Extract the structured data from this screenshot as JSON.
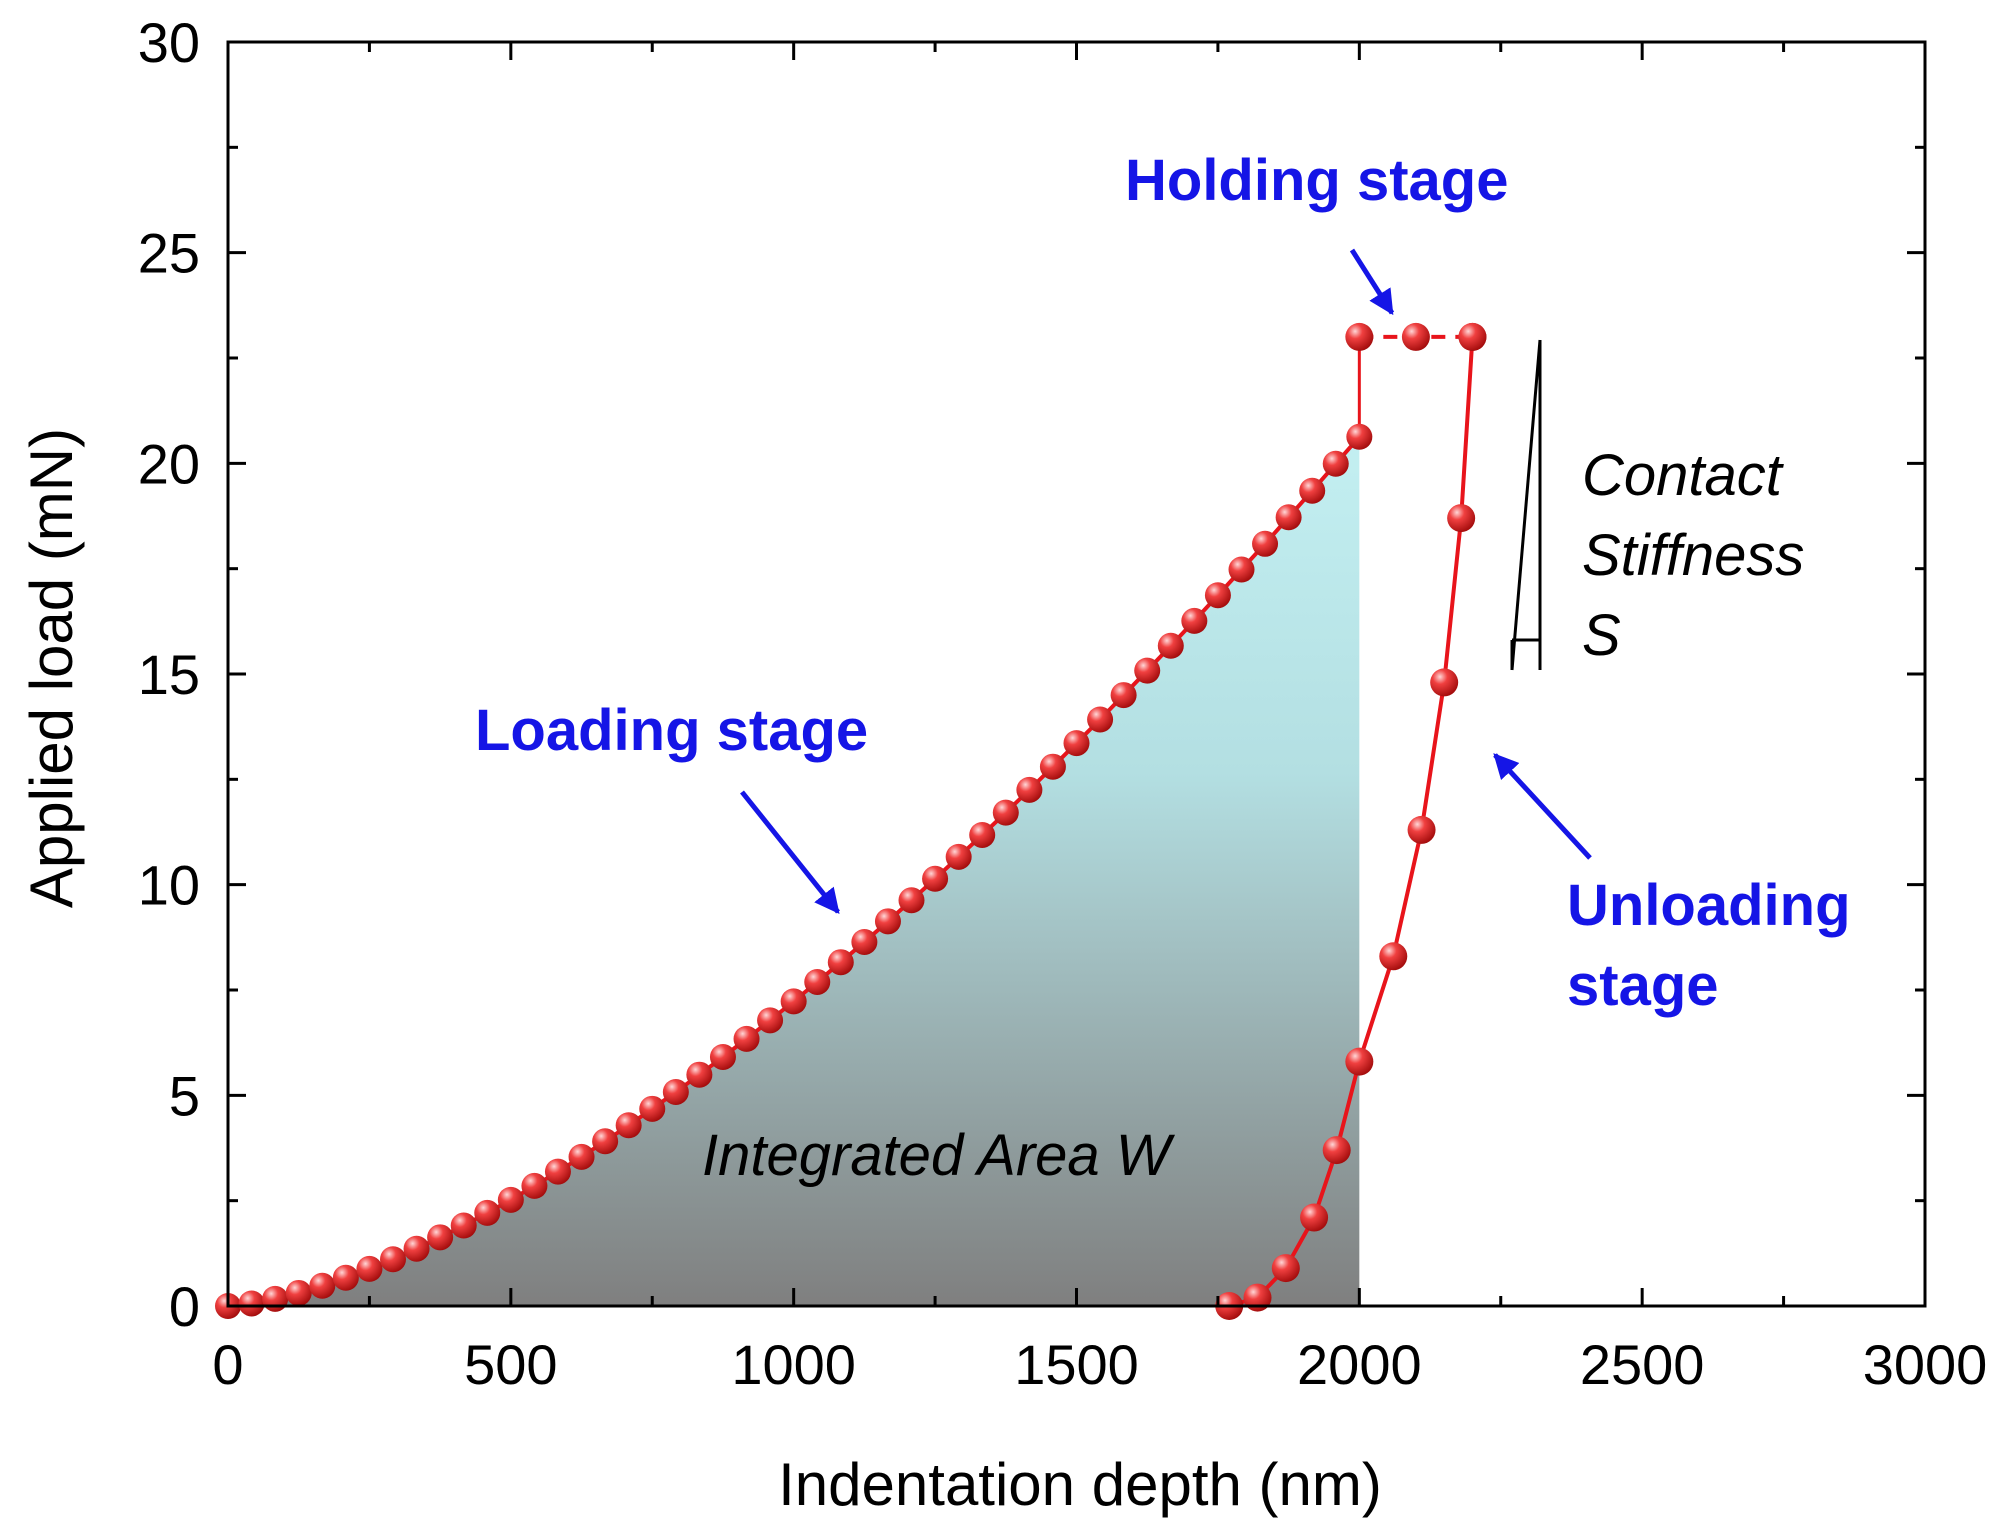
{
  "chart_data": {
    "type": "scatter",
    "xlabel": "Indentation depth (nm)",
    "ylabel": "Applied load (mN)",
    "xlim": [
      0,
      3000
    ],
    "ylim": [
      0,
      30
    ],
    "xticks": [
      0,
      500,
      1000,
      1500,
      2000,
      2500,
      3000
    ],
    "yticks": [
      0,
      5,
      10,
      15,
      20,
      25,
      30
    ],
    "xtick_labels": [
      "0",
      "500",
      "1000",
      "1500",
      "2000",
      "2500",
      "3000"
    ],
    "ytick_labels": [
      "0",
      "5",
      "10",
      "15",
      "20",
      "25",
      "30"
    ],
    "grid": false,
    "colors": {
      "series": "#e8141b",
      "annotation": "#1515e6",
      "fill_top": "#c8f4f6",
      "fill_bottom": "#7f7f7f"
    },
    "series": [
      {
        "segment": "loading",
        "x": [
          0,
          41.7,
          83.3,
          125,
          166.7,
          208.3,
          250,
          291.7,
          333.3,
          375,
          416.7,
          458.3,
          500,
          541.7,
          583.3,
          625,
          666.7,
          708.3,
          750,
          791.7,
          833.3,
          875,
          916.7,
          958.3,
          1000,
          1041.7,
          1083.3,
          1125,
          1166.7,
          1208.3,
          1250,
          1291.7,
          1333.3,
          1375,
          1416.7,
          1458.3,
          1500,
          1541.7,
          1583.3,
          1625,
          1666.7,
          1708.3,
          1750,
          1791.7,
          1833.3,
          1875,
          1916.7,
          1958.3,
          2000
        ],
        "y": [
          0,
          0.06,
          0.17,
          0.31,
          0.48,
          0.67,
          0.88,
          1.11,
          1.36,
          1.63,
          1.91,
          2.21,
          2.52,
          2.85,
          3.19,
          3.54,
          3.91,
          4.29,
          4.68,
          5.08,
          5.49,
          5.91,
          6.34,
          6.78,
          7.23,
          7.69,
          8.16,
          8.64,
          9.13,
          9.63,
          10.14,
          10.66,
          11.18,
          11.71,
          12.25,
          12.8,
          13.36,
          13.92,
          14.5,
          15.08,
          15.67,
          16.26,
          16.87,
          17.48,
          18.09,
          18.72,
          19.35,
          19.99,
          20.63
        ]
      },
      {
        "segment": "holding",
        "x": [
          2000,
          2100,
          2200
        ],
        "y": [
          23,
          23,
          23
        ]
      },
      {
        "segment": "unloading",
        "x": [
          2200,
          2180,
          2150,
          2110,
          2060,
          2000,
          1960,
          1920,
          1870,
          1820,
          1770
        ],
        "y": [
          23,
          18.7,
          14.8,
          11.3,
          8.3,
          5.8,
          3.7,
          2.1,
          0.9,
          0.2,
          0
        ]
      }
    ],
    "fill_region": {
      "x_from": 0,
      "x_to": 2000,
      "label": "Integrated Area W"
    },
    "annotations": {
      "loading": "Loading stage",
      "holding": "Holding stage",
      "unloading_line1": "Unloading",
      "unloading_line2": "stage",
      "stiffness_line1": "Contact",
      "stiffness_line2": "Stiffness",
      "stiffness_line3": "S",
      "area": "Integrated Area W"
    }
  }
}
